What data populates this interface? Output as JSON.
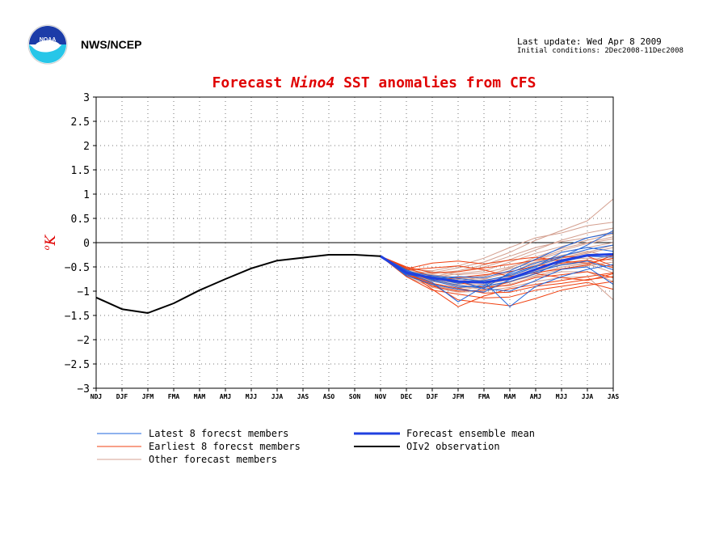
{
  "header": {
    "agency": "NWS/NCEP",
    "last_update": "Last update: Wed Apr 8 2009",
    "initial_conditions": "Initial conditions: 2Dec2008-11Dec2008",
    "logo_icon": "noaa-logo-icon"
  },
  "colors": {
    "title": "#e00000",
    "latest": "#1e64dc",
    "earliest": "#f04010",
    "other": "#d4a090",
    "mean": "#2040e0",
    "observation": "#000000"
  },
  "chart_data": {
    "type": "line",
    "title_parts": [
      "Forecast ",
      "Nino4",
      "  SST anomalies from CFS"
    ],
    "ylabel_unit": "K",
    "ylabel_degree": "o",
    "ylim": [
      -3,
      3
    ],
    "yticks": [
      "3",
      "2.5",
      "2",
      "1.5",
      "1",
      "0.5",
      "0",
      "−0.5",
      "−1",
      "−1.5",
      "−2",
      "−2.5",
      "−3"
    ],
    "categories": [
      "NDJ",
      "DJF",
      "JFM",
      "FMA",
      "MAM",
      "AMJ",
      "MJJ",
      "JJA",
      "JAS",
      "ASO",
      "SON",
      "NOV",
      "DEC",
      "DJF",
      "JFM",
      "FMA",
      "MAM",
      "AMJ",
      "MJJ",
      "JJA",
      "JAS"
    ],
    "grid": true,
    "legend": [
      {
        "label": "Latest 8 forecst members",
        "color_key": "latest"
      },
      {
        "label": "Earliest 8 forecst members",
        "color_key": "earliest"
      },
      {
        "label": "Other forecast members",
        "color_key": "other"
      },
      {
        "label": "Forecast ensemble mean",
        "color_key": "mean"
      },
      {
        "label": "OIv2 observation",
        "color_key": "observation"
      }
    ],
    "observation": {
      "name": "OIv2 observation",
      "values": [
        -1.13,
        -1.37,
        -1.45,
        -1.25,
        -0.98,
        -0.75,
        -0.53,
        -0.37,
        -0.31,
        -0.25,
        -0.25,
        -0.28
      ]
    },
    "ensemble_mean": {
      "name": "Forecast ensemble mean",
      "values": [
        -0.28,
        -0.62,
        -0.73,
        -0.8,
        -0.82,
        -0.74,
        -0.55,
        -0.37,
        -0.26,
        -0.24
      ]
    },
    "latest_members": [
      [
        -0.28,
        -0.58,
        -0.78,
        -0.92,
        -0.88,
        -0.65,
        -0.48,
        -0.3,
        -0.05,
        0.25
      ],
      [
        -0.28,
        -0.64,
        -0.7,
        -0.78,
        -0.95,
        -1.0,
        -0.78,
        -0.55,
        -0.5,
        -0.86
      ],
      [
        -0.28,
        -0.62,
        -0.82,
        -1.22,
        -0.9,
        -0.8,
        -0.64,
        -0.4,
        -0.28,
        -0.3
      ],
      [
        -0.28,
        -0.6,
        -0.68,
        -0.74,
        -0.8,
        -1.32,
        -0.9,
        -0.7,
        -0.55,
        -0.45
      ],
      [
        -0.28,
        -0.66,
        -0.72,
        -0.84,
        -0.78,
        -0.68,
        -0.5,
        -0.2,
        -0.1,
        -0.18
      ],
      [
        -0.28,
        -0.56,
        -0.76,
        -0.88,
        -0.94,
        -0.62,
        -0.42,
        -0.28,
        -0.14,
        -0.05
      ],
      [
        -0.28,
        -0.68,
        -0.86,
        -0.96,
        -1.02,
        -0.76,
        -0.6,
        -0.46,
        -0.38,
        -0.56
      ],
      [
        -0.28,
        -0.63,
        -0.74,
        -0.7,
        -0.72,
        -0.58,
        -0.34,
        -0.1,
        0.1,
        0.2
      ]
    ],
    "earliest_members": [
      [
        -0.28,
        -0.5,
        -0.62,
        -0.6,
        -0.52,
        -0.45,
        -0.36,
        -0.3,
        -0.28,
        -0.48
      ],
      [
        -0.28,
        -0.58,
        -0.96,
        -1.32,
        -1.1,
        -0.95,
        -0.86,
        -0.78,
        -0.7,
        -0.62
      ],
      [
        -0.28,
        -0.54,
        -0.42,
        -0.38,
        -0.44,
        -0.36,
        -0.3,
        -0.38,
        -0.42,
        -0.32
      ],
      [
        -0.28,
        -0.66,
        -0.86,
        -1.18,
        -1.24,
        -1.3,
        -1.15,
        -0.98,
        -0.88,
        -0.8
      ],
      [
        -0.28,
        -0.52,
        -0.7,
        -0.82,
        -0.92,
        -0.88,
        -0.72,
        -0.66,
        -0.6,
        -0.72
      ],
      [
        -0.28,
        -0.7,
        -0.98,
        -1.06,
        -1.14,
        -1.12,
        -0.98,
        -0.9,
        -0.82,
        -0.96
      ],
      [
        -0.28,
        -0.56,
        -0.52,
        -0.48,
        -0.56,
        -0.7,
        -0.62,
        -0.54,
        -0.46,
        -0.26
      ],
      [
        -0.28,
        -0.62,
        -0.9,
        -1.0,
        -0.98,
        -0.8,
        -0.64,
        -0.72,
        -0.78,
        -0.64
      ],
      [
        -0.28,
        -0.6,
        -0.78,
        -0.72,
        -0.66,
        -0.6,
        -0.48,
        -0.42,
        -0.36,
        -0.52
      ],
      [
        -0.28,
        -0.64,
        -0.84,
        -0.94,
        -1.04,
        -1.02,
        -0.9,
        -0.84,
        -0.76,
        -0.7
      ]
    ],
    "other_members": [
      [
        -0.28,
        -0.6,
        -0.62,
        -0.52,
        -0.4,
        -0.2,
        0.05,
        0.25,
        0.45,
        0.9
      ],
      [
        -0.28,
        -0.55,
        -0.58,
        -0.48,
        -0.32,
        -0.1,
        0.1,
        0.2,
        0.35,
        0.42
      ],
      [
        -0.28,
        -0.62,
        -0.7,
        -0.6,
        -0.5,
        -0.35,
        -0.15,
        0.05,
        0.2,
        0.3
      ],
      [
        -0.28,
        -0.58,
        -0.74,
        -0.8,
        -0.7,
        -0.52,
        -0.3,
        -0.12,
        0.0,
        0.12
      ],
      [
        -0.28,
        -0.66,
        -0.8,
        -0.86,
        -0.8,
        -0.66,
        -0.45,
        -0.3,
        -0.2,
        -0.05
      ],
      [
        -0.28,
        -0.52,
        -0.6,
        -0.66,
        -0.62,
        -0.5,
        -0.36,
        -0.2,
        -0.1,
        0.0
      ],
      [
        -0.28,
        -0.68,
        -0.88,
        -0.98,
        -0.9,
        -0.8,
        -0.68,
        -0.55,
        -0.48,
        -0.4
      ],
      [
        -0.28,
        -0.6,
        -0.66,
        -0.72,
        -0.74,
        -0.62,
        -0.4,
        -0.26,
        -0.18,
        -0.3
      ],
      [
        -0.28,
        -0.64,
        -0.78,
        -0.9,
        -0.96,
        -0.86,
        -0.7,
        -0.6,
        -0.6,
        -0.8
      ],
      [
        -0.28,
        -0.56,
        -0.64,
        -0.58,
        -0.46,
        -0.28,
        -0.1,
        0.02,
        0.1,
        0.22
      ],
      [
        -0.28,
        -0.7,
        -0.92,
        -1.02,
        -1.0,
        -0.92,
        -0.8,
        -0.72,
        -0.7,
        -1.18
      ],
      [
        -0.28,
        -0.62,
        -0.7,
        -0.76,
        -0.68,
        -0.54,
        -0.4,
        -0.35,
        -0.32,
        -0.36
      ],
      [
        -0.28,
        -0.58,
        -0.72,
        -0.64,
        -0.58,
        -0.4,
        -0.22,
        -0.08,
        0.05,
        0.18
      ],
      [
        -0.28,
        -0.66,
        -0.76,
        -0.84,
        -0.86,
        -0.76,
        -0.56,
        -0.44,
        -0.38,
        -0.25
      ],
      [
        -0.28,
        -0.54,
        -0.68,
        -0.74,
        -0.78,
        -0.7,
        -0.5,
        -0.32,
        -0.22,
        -0.1
      ],
      [
        -0.28,
        -0.62,
        -0.84,
        -0.94,
        -0.88,
        -0.74,
        -0.58,
        -0.46,
        -0.42,
        -0.5
      ],
      [
        -0.28,
        -0.6,
        -0.74,
        -0.82,
        -0.76,
        -0.58,
        -0.34,
        -0.16,
        -0.02,
        0.08
      ],
      [
        -0.28,
        -0.64,
        -0.8,
        -0.88,
        -0.92,
        -0.82,
        -0.64,
        -0.5,
        -0.44,
        -0.62
      ]
    ]
  }
}
